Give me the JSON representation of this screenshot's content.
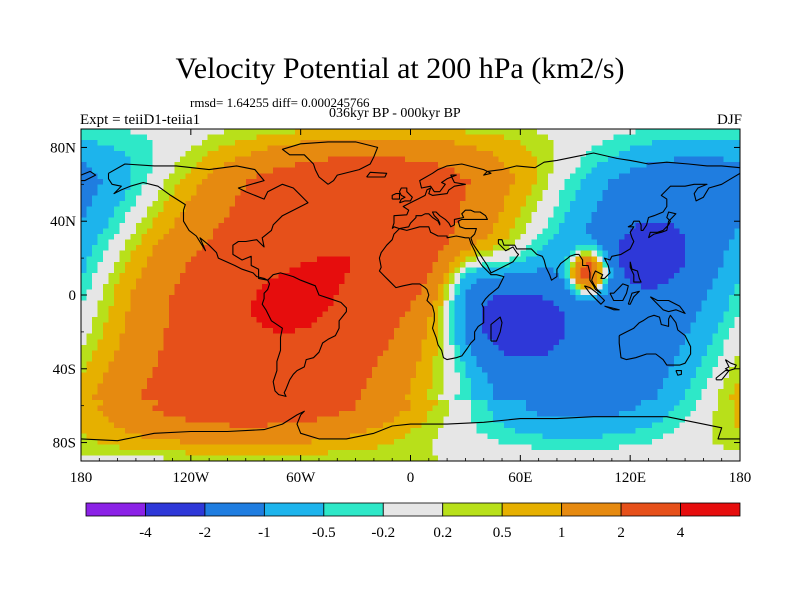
{
  "header": {
    "title": "Velocity Potential at 200 hPa (km2/s)",
    "stats": "rmsd= 1.64255 diff= 0.000245766",
    "subtitle": "036kyr BP - 000kyr BP",
    "experiment": "Expt = teiiD1-teiia1",
    "season": "DJF"
  },
  "chart_data": {
    "type": "heatmap",
    "title": "Velocity Potential at 200 hPa (km2/s)",
    "xlabel": "",
    "ylabel": "",
    "xlim": [
      -180,
      180
    ],
    "ylim": [
      -90,
      90
    ],
    "x_ticks": [
      {
        "value": -180,
        "label": "180"
      },
      {
        "value": -120,
        "label": "120W"
      },
      {
        "value": -60,
        "label": "60W"
      },
      {
        "value": 0,
        "label": "0"
      },
      {
        "value": 60,
        "label": "60E"
      },
      {
        "value": 120,
        "label": "120E"
      },
      {
        "value": 180,
        "label": "180"
      }
    ],
    "y_ticks": [
      {
        "value": 80,
        "label": "80N"
      },
      {
        "value": 40,
        "label": "40N"
      },
      {
        "value": 0,
        "label": "0"
      },
      {
        "value": -40,
        "label": "40S"
      },
      {
        "value": -80,
        "label": "80S"
      }
    ],
    "contour_levels": [
      -4,
      -2,
      -1,
      -0.5,
      -0.2,
      0.2,
      0.5,
      1,
      2,
      4
    ],
    "colorbar_labels": [
      "-4",
      "-2",
      "-1",
      "-0.5",
      "-0.2",
      "0.2",
      "0.5",
      "1",
      "2",
      "4"
    ],
    "colors": [
      "#8b22e6",
      "#2e38d8",
      "#1f7de0",
      "#1db4ec",
      "#2ee8c8",
      "#e6e6e6",
      "#b8e01a",
      "#e6b000",
      "#e68a10",
      "#e6501a",
      "#e60d0d"
    ],
    "features": [
      {
        "lon": -65,
        "lat": -3,
        "value": 4.3,
        "description": "maximum over tropical South America"
      },
      {
        "lon": 55,
        "lat": -18,
        "value": -4.5,
        "description": "minimum over the western Indian Ocean"
      },
      {
        "lon": 97,
        "lat": 12,
        "value": 1.0,
        "description": "local positive cell over Indochina"
      },
      {
        "lon": 132,
        "lat": 20,
        "value": -2.5,
        "description": "secondary minimum over the western Pacific"
      }
    ]
  }
}
